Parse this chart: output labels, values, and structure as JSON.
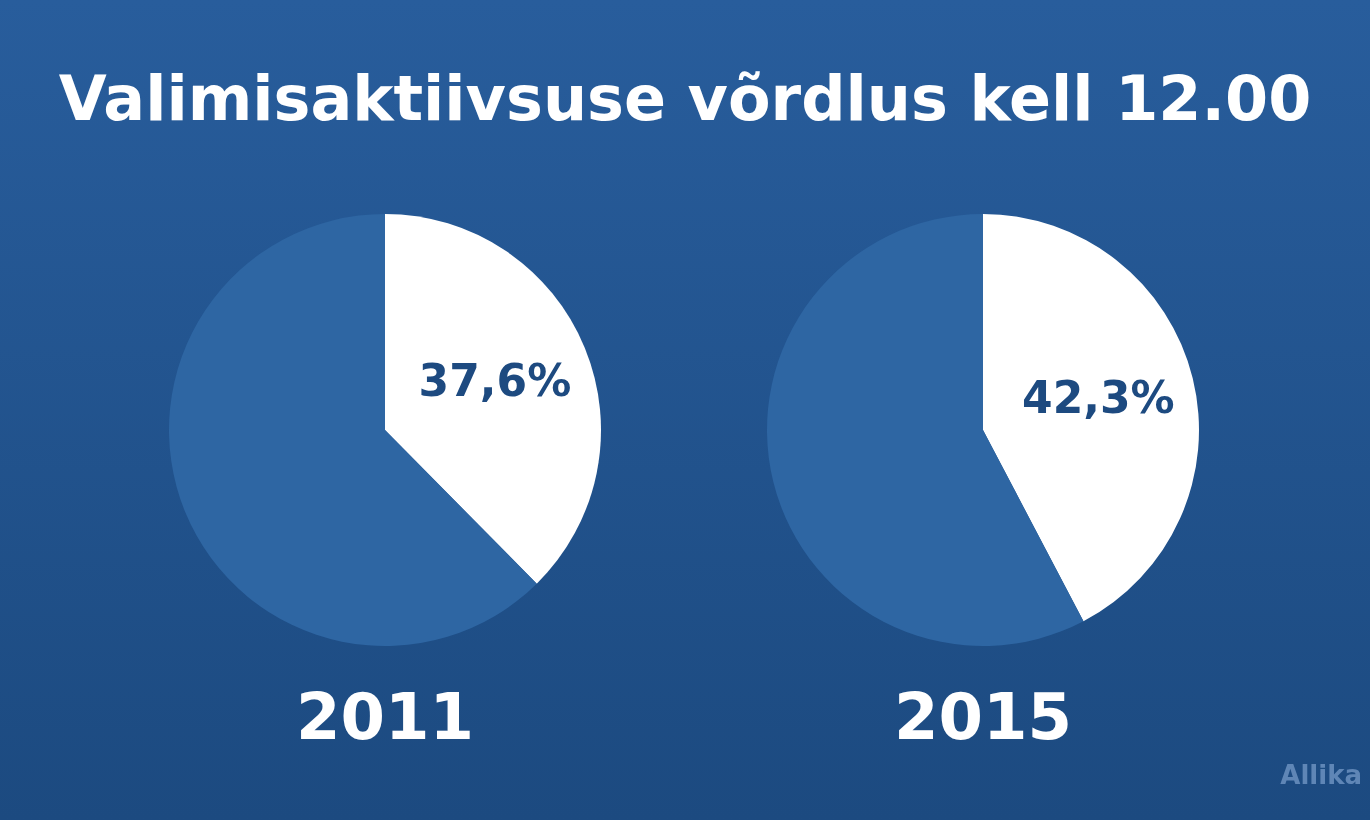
{
  "chart_data": [
    {
      "type": "pie",
      "title": "Valimisaktiivsuse võrdlus kell 12.00",
      "subtitle": "2011",
      "categories": [
        null,
        null
      ],
      "values": [
        37.6,
        62.4
      ],
      "colors": [
        "#ffffff",
        "#2e66a3"
      ],
      "value_labels": [
        "37,6%",
        null
      ]
    },
    {
      "type": "pie",
      "subtitle": "2015",
      "categories": [
        null,
        null
      ],
      "values": [
        42.3,
        57.7
      ],
      "colors": [
        "#ffffff",
        "#2e66a3"
      ],
      "value_labels": [
        "42,3%",
        null
      ],
      "annotations": [
        "Allika"
      ]
    }
  ]
}
